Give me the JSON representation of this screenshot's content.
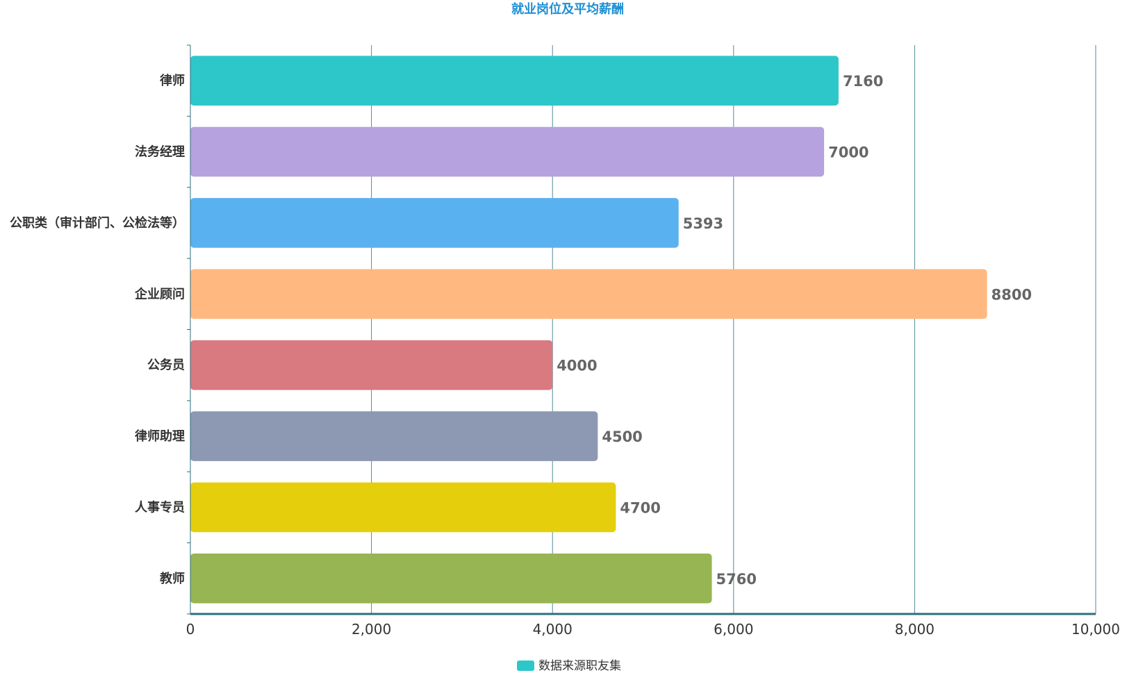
{
  "chart_data": {
    "type": "bar",
    "orientation": "horizontal",
    "title": "就业岗位及平均薪酬",
    "categories": [
      "律师",
      "法务经理",
      "公职类（审计部门、公检法等）",
      "企业顾问",
      "公务员",
      "律师助理",
      "人事专员",
      "教师"
    ],
    "series": [
      {
        "name": "数据来源职友集",
        "values": [
          7160,
          7000,
          5393,
          8800,
          4000,
          4500,
          4700,
          5760
        ]
      }
    ],
    "bar_colors": [
      "#2ec7c9",
      "#b6a2de",
      "#5ab1ef",
      "#ffb980",
      "#d87a80",
      "#8d98b3",
      "#e5cf0d",
      "#97b552"
    ],
    "xlim": [
      0,
      10000
    ],
    "x_ticks": [
      0,
      2000,
      4000,
      6000,
      8000,
      10000
    ],
    "x_tick_labels": [
      "0",
      "2,000",
      "4,000",
      "6,000",
      "8,000",
      "10,000"
    ],
    "xlabel": "",
    "ylabel": "",
    "grid": true,
    "legend_position": "bottom-center",
    "legend_color": "#2ec7c9"
  }
}
